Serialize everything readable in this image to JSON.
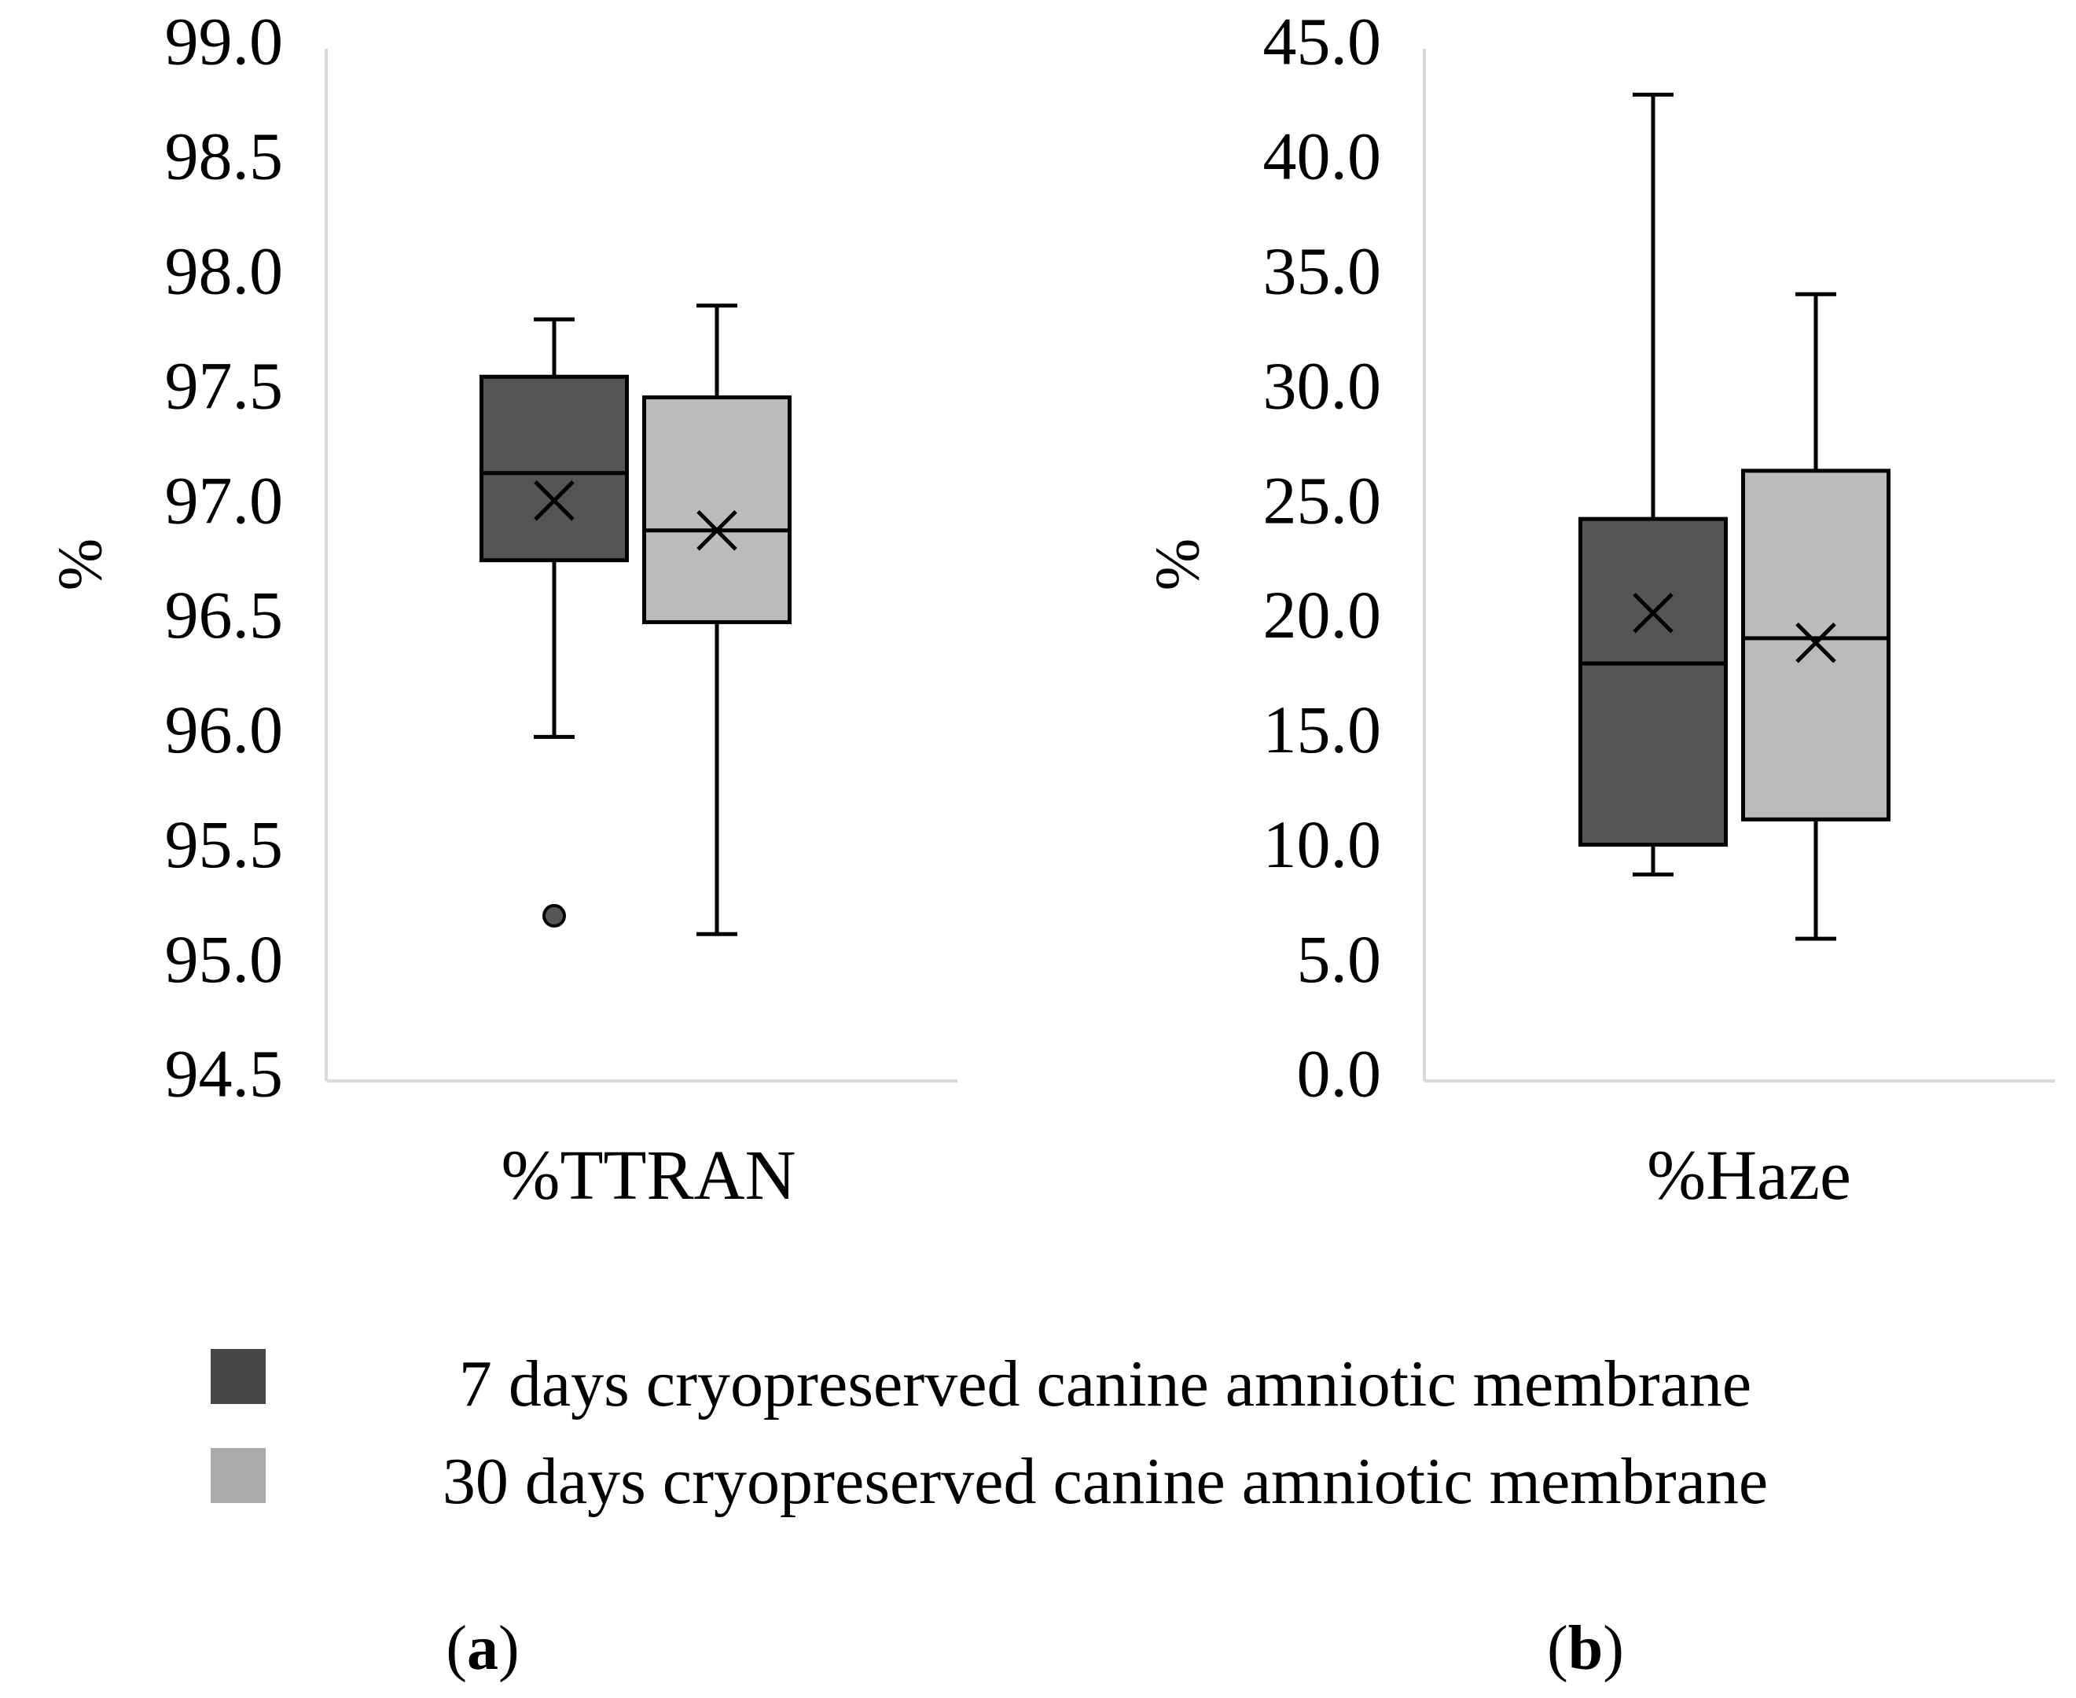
{
  "chart_data": [
    {
      "type": "box",
      "panel_label": "a",
      "ylabel": "%",
      "xlabel": "%TTRAN",
      "ylim": [
        94.5,
        99.0
      ],
      "yticks": [
        "99.0",
        "98.5",
        "98.0",
        "97.5",
        "97.0",
        "96.5",
        "96.0",
        "95.5",
        "95.0",
        "94.5"
      ],
      "ytick_values": [
        99.0,
        98.5,
        98.0,
        97.5,
        97.0,
        96.5,
        96.0,
        95.5,
        95.0,
        94.5
      ],
      "series": [
        {
          "name": "7 days cryopreserved canine amniotic membrane",
          "color": "#555555",
          "whisker_low": 96.0,
          "q1": 96.77,
          "median": 97.15,
          "q3": 97.57,
          "whisker_high": 97.82,
          "mean": 97.03,
          "outliers": [
            95.22
          ]
        },
        {
          "name": "30 days cryopreserved canine amniotic membrane",
          "color": "#bbbbbb",
          "whisker_low": 95.14,
          "q1": 96.5,
          "median": 96.9,
          "q3": 97.48,
          "whisker_high": 97.88,
          "mean": 96.9,
          "outliers": []
        }
      ]
    },
    {
      "type": "box",
      "panel_label": "b",
      "ylabel": "%",
      "xlabel": "%Haze",
      "ylim": [
        0.0,
        45.0
      ],
      "yticks": [
        "45.0",
        "40.0",
        "35.0",
        "30.0",
        "25.0",
        "20.0",
        "15.0",
        "10.0",
        "5.0",
        "0.0"
      ],
      "ytick_values": [
        45.0,
        40.0,
        35.0,
        30.0,
        25.0,
        20.0,
        15.0,
        10.0,
        5.0,
        0.0
      ],
      "series": [
        {
          "name": "7 days cryopreserved canine amniotic membrane",
          "color": "#555555",
          "whisker_low": 9.0,
          "q1": 10.3,
          "median": 18.2,
          "q3": 24.5,
          "whisker_high": 43.0,
          "mean": 20.4,
          "outliers": []
        },
        {
          "name": "30 days cryopreserved canine amniotic membrane",
          "color": "#bbbbbb",
          "whisker_low": 6.2,
          "q1": 11.4,
          "median": 19.3,
          "q3": 26.6,
          "whisker_high": 34.3,
          "mean": 19.1,
          "outliers": []
        }
      ]
    }
  ],
  "legend": {
    "items": [
      {
        "label": "7 days cryopreserved canine amniotic membrane",
        "color": "#474747"
      },
      {
        "label": "30 days cryopreserved canine amniotic membrane",
        "color": "#aaaaaa"
      }
    ]
  },
  "panel_labels": {
    "a": {
      "open": "(",
      "letter": "a",
      "close": ")"
    },
    "b": {
      "open": "(",
      "letter": "b",
      "close": ")"
    }
  }
}
